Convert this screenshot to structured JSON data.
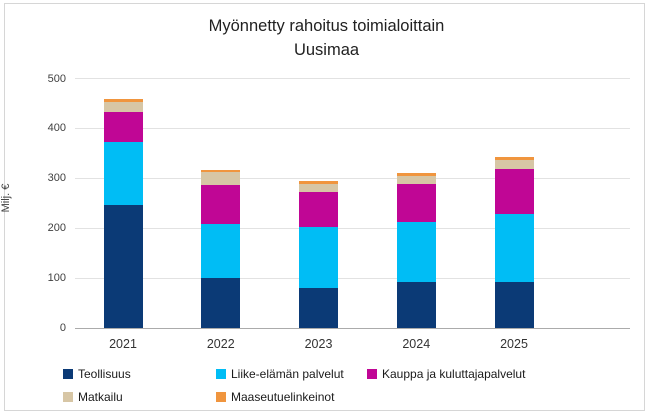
{
  "title": {
    "line1": "Myönnetty rahoitus toimialoittain",
    "line2": "Uusimaa"
  },
  "y_axis": {
    "title": "Milj. €"
  },
  "chart_data": {
    "type": "bar",
    "stacked": true,
    "title": "Myönnetty rahoitus toimialoittain Uusimaa",
    "ylabel": "Milj. €",
    "ylim": [
      0,
      500
    ],
    "yticks": [
      0,
      100,
      200,
      300,
      400,
      500
    ],
    "grid": true,
    "legend_position": "bottom",
    "categories": [
      "2021",
      "2022",
      "2023",
      "2024",
      "2025"
    ],
    "series": [
      {
        "name": "Teollisuus",
        "color": "#0b3a76",
        "values": [
          246,
          100,
          80,
          92,
          92
        ]
      },
      {
        "name": "Liike-elämän palvelut",
        "color": "#00bdf5",
        "values": [
          126,
          108,
          123,
          121,
          137
        ]
      },
      {
        "name": "Kauppa ja kuluttajapalvelut",
        "color": "#c00695",
        "values": [
          61,
          79,
          70,
          75,
          89
        ]
      },
      {
        "name": "Matkailu",
        "color": "#d7c6a5",
        "values": [
          20,
          25,
          16,
          17,
          19
        ]
      },
      {
        "name": "Maaseutuelinkeinot",
        "color": "#f0953e",
        "values": [
          5,
          5,
          5,
          5,
          5
        ]
      }
    ]
  }
}
